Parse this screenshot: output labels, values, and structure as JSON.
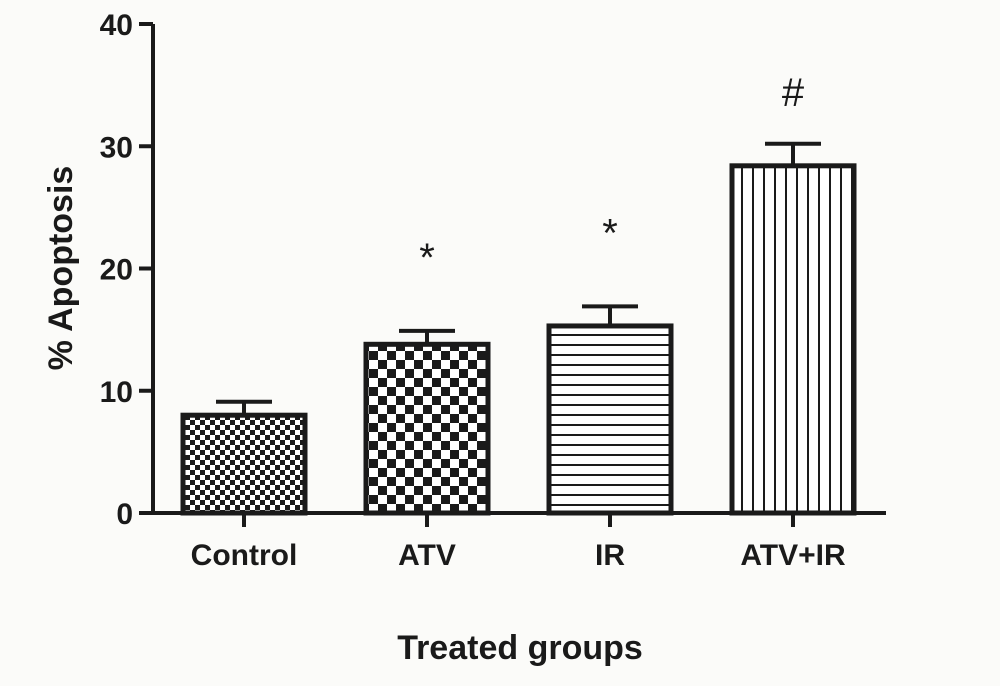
{
  "chart_data": {
    "type": "bar",
    "title": "",
    "xlabel": "Treated groups",
    "ylabel": "% Apoptosis",
    "ylim": [
      0,
      40
    ],
    "yticks": [
      0,
      10,
      20,
      30,
      40
    ],
    "categories": [
      "Control",
      "ATV",
      "IR",
      "ATV+IR"
    ],
    "values": [
      8.0,
      13.8,
      15.3,
      28.4
    ],
    "error": [
      1.1,
      1.1,
      1.6,
      1.8
    ],
    "annotations": [
      "",
      "*",
      "*",
      "#"
    ],
    "patterns": [
      "fine-checker",
      "coarse-checker",
      "horizontal-lines",
      "vertical-lines"
    ],
    "grid": false,
    "legend": "none",
    "colors": {
      "ink": "#1a1a1a",
      "background": "#fbfbf9",
      "fill": "#ffffff"
    }
  }
}
